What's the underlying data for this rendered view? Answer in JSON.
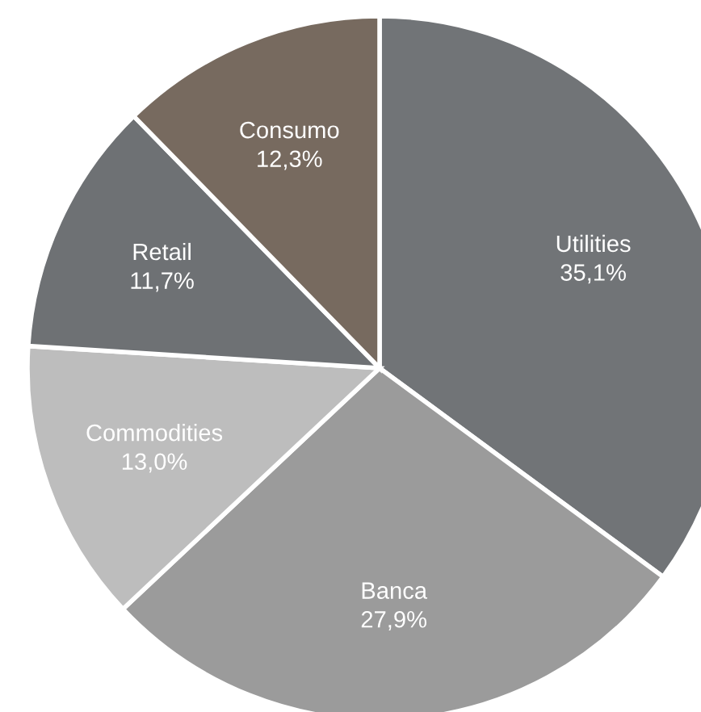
{
  "chart_data": {
    "type": "pie",
    "categories": [
      "Utilities",
      "Banca",
      "Commodities",
      "Retail",
      "Consumo"
    ],
    "values": [
      35.1,
      27.9,
      13.0,
      11.7,
      12.3
    ],
    "value_labels": [
      "35,1%",
      "27,9%",
      "13,0%",
      "11,7%",
      "12,3%"
    ],
    "colors": [
      "#717477",
      "#9b9b9b",
      "#bdbdbd",
      "#6e7174",
      "#776a5f"
    ],
    "legend": false
  }
}
